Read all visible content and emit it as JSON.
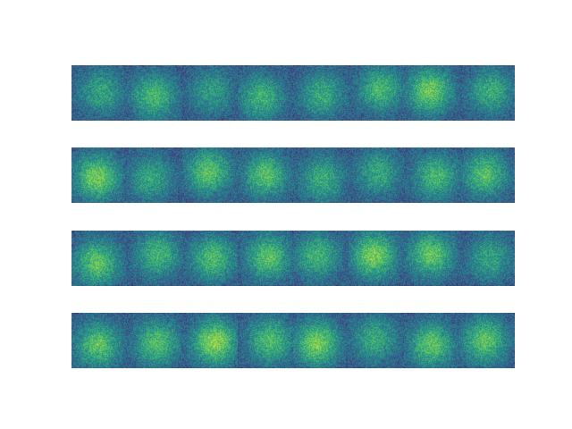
{
  "figure": {
    "colormap": "viridis",
    "colors": {
      "low": "#3b528b",
      "mid": "#21918c",
      "high": "#bade28",
      "peak": "#fde725"
    }
  },
  "rows": [
    {
      "tiles": [
        0.55,
        0.72,
        0.5,
        0.66,
        0.6,
        0.7,
        0.88,
        0.62
      ]
    },
    {
      "tiles": [
        0.9,
        0.58,
        0.8,
        0.76,
        0.62,
        0.58,
        0.7,
        0.76
      ]
    },
    {
      "tiles": [
        0.82,
        0.68,
        0.74,
        0.78,
        0.68,
        0.92,
        0.82,
        0.55
      ]
    },
    {
      "tiles": [
        0.8,
        0.76,
        0.98,
        0.74,
        0.92,
        0.6,
        0.8,
        0.82
      ]
    }
  ]
}
